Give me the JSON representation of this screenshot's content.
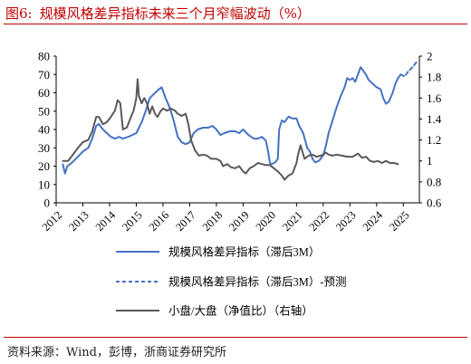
{
  "figure_label": "图6:",
  "title": "规模风格差异指标未来三个月窄幅波动（%）",
  "source": "资料来源：Wind，彭博，浙商证券研究所",
  "colors": {
    "accent": "#c00000",
    "blue": "#4472c4",
    "gray": "#595959"
  },
  "chart_data": {
    "type": "line",
    "x_ticks": [
      "2012",
      "2013",
      "2014",
      "2015",
      "2016",
      "2017",
      "2018",
      "2019",
      "2020",
      "2021",
      "2022",
      "2023",
      "2024",
      "2025"
    ],
    "xlim": [
      2012,
      2025.6
    ],
    "y_left": {
      "lim": [
        0,
        80
      ],
      "ticks": [
        "0",
        "10",
        "20",
        "30",
        "40",
        "50",
        "60",
        "70",
        "80"
      ]
    },
    "y_right": {
      "lim": [
        0.6,
        2.0
      ],
      "ticks": [
        "0.6",
        "0.8",
        "1",
        "1.2",
        "1.4",
        "1.6",
        "1.8",
        "2"
      ]
    },
    "legend": [
      "规模风格差异指标（滞后3M）",
      "规模风格差异指标（滞后3M）-预测",
      "小盘/大盘（净值比）（右轴）"
    ],
    "series": [
      {
        "name": "规模风格差异指标（滞后3M）",
        "axis": "left",
        "style": "solid",
        "points": [
          [
            2012.25,
            21
          ],
          [
            2012.33,
            16
          ],
          [
            2012.42,
            20
          ],
          [
            2012.6,
            22
          ],
          [
            2012.8,
            25
          ],
          [
            2013.0,
            28
          ],
          [
            2013.2,
            30
          ],
          [
            2013.35,
            35
          ],
          [
            2013.5,
            42
          ],
          [
            2013.6,
            43
          ],
          [
            2013.75,
            40
          ],
          [
            2013.9,
            38
          ],
          [
            2014.05,
            36
          ],
          [
            2014.2,
            35
          ],
          [
            2014.35,
            36
          ],
          [
            2014.5,
            35
          ],
          [
            2014.7,
            36
          ],
          [
            2014.85,
            37
          ],
          [
            2015.0,
            38
          ],
          [
            2015.2,
            44
          ],
          [
            2015.35,
            50
          ],
          [
            2015.5,
            57
          ],
          [
            2015.7,
            60
          ],
          [
            2015.85,
            62
          ],
          [
            2015.95,
            63
          ],
          [
            2016.1,
            57
          ],
          [
            2016.25,
            52
          ],
          [
            2016.4,
            45
          ],
          [
            2016.55,
            36
          ],
          [
            2016.7,
            33
          ],
          [
            2016.85,
            32
          ],
          [
            2017.0,
            33
          ],
          [
            2017.15,
            38
          ],
          [
            2017.3,
            40
          ],
          [
            2017.5,
            41
          ],
          [
            2017.7,
            41
          ],
          [
            2017.85,
            42
          ],
          [
            2018.0,
            40
          ],
          [
            2018.15,
            37
          ],
          [
            2018.3,
            38
          ],
          [
            2018.5,
            39
          ],
          [
            2018.7,
            39
          ],
          [
            2018.85,
            38
          ],
          [
            2019.0,
            40
          ],
          [
            2019.2,
            37
          ],
          [
            2019.4,
            35
          ],
          [
            2019.55,
            35
          ],
          [
            2019.7,
            36
          ],
          [
            2019.85,
            34
          ],
          [
            2019.95,
            27
          ],
          [
            2020.0,
            22
          ],
          [
            2020.05,
            21
          ],
          [
            2020.2,
            22
          ],
          [
            2020.3,
            24
          ],
          [
            2020.35,
            40
          ],
          [
            2020.45,
            45
          ],
          [
            2020.55,
            44
          ],
          [
            2020.7,
            47
          ],
          [
            2020.85,
            46
          ],
          [
            2021.0,
            46
          ],
          [
            2021.1,
            42
          ],
          [
            2021.25,
            38
          ],
          [
            2021.4,
            30
          ],
          [
            2021.5,
            28
          ],
          [
            2021.6,
            24
          ],
          [
            2021.7,
            22
          ],
          [
            2021.85,
            23
          ],
          [
            2022.0,
            26
          ],
          [
            2022.1,
            31
          ],
          [
            2022.2,
            38
          ],
          [
            2022.35,
            45
          ],
          [
            2022.5,
            52
          ],
          [
            2022.65,
            58
          ],
          [
            2022.8,
            63
          ],
          [
            2022.9,
            68
          ],
          [
            2023.0,
            67
          ],
          [
            2023.1,
            68
          ],
          [
            2023.2,
            66
          ],
          [
            2023.3,
            70
          ],
          [
            2023.4,
            74
          ],
          [
            2023.5,
            72
          ],
          [
            2023.6,
            70
          ],
          [
            2023.7,
            67
          ],
          [
            2023.85,
            65
          ],
          [
            2024.0,
            63
          ],
          [
            2024.15,
            62
          ],
          [
            2024.25,
            57
          ],
          [
            2024.35,
            54
          ],
          [
            2024.45,
            55
          ],
          [
            2024.6,
            60
          ],
          [
            2024.7,
            65
          ],
          [
            2024.8,
            68
          ],
          [
            2024.9,
            70
          ]
        ]
      },
      {
        "name": "规模风格差异指标（滞后3M）-预测",
        "axis": "left",
        "style": "dashed",
        "points": [
          [
            2024.9,
            70
          ],
          [
            2025.05,
            69
          ],
          [
            2025.2,
            72
          ],
          [
            2025.35,
            74
          ],
          [
            2025.5,
            77
          ]
        ]
      },
      {
        "name": "小盘/大盘（净值比）（右轴）",
        "axis": "right",
        "style": "solid",
        "points": [
          [
            2012.25,
            1.0
          ],
          [
            2012.45,
            1.0
          ],
          [
            2012.6,
            1.05
          ],
          [
            2012.8,
            1.12
          ],
          [
            2013.0,
            1.18
          ],
          [
            2013.2,
            1.2
          ],
          [
            2013.35,
            1.28
          ],
          [
            2013.5,
            1.42
          ],
          [
            2013.6,
            1.42
          ],
          [
            2013.75,
            1.35
          ],
          [
            2013.9,
            1.37
          ],
          [
            2014.05,
            1.42
          ],
          [
            2014.2,
            1.48
          ],
          [
            2014.3,
            1.58
          ],
          [
            2014.4,
            1.55
          ],
          [
            2014.5,
            1.3
          ],
          [
            2014.65,
            1.32
          ],
          [
            2014.8,
            1.42
          ],
          [
            2014.9,
            1.48
          ],
          [
            2015.0,
            1.6
          ],
          [
            2015.05,
            1.78
          ],
          [
            2015.1,
            1.62
          ],
          [
            2015.2,
            1.55
          ],
          [
            2015.3,
            1.6
          ],
          [
            2015.4,
            1.55
          ],
          [
            2015.5,
            1.45
          ],
          [
            2015.6,
            1.52
          ],
          [
            2015.7,
            1.45
          ],
          [
            2015.8,
            1.42
          ],
          [
            2015.9,
            1.47
          ],
          [
            2016.0,
            1.5
          ],
          [
            2016.15,
            1.48
          ],
          [
            2016.3,
            1.5
          ],
          [
            2016.45,
            1.48
          ],
          [
            2016.55,
            1.45
          ],
          [
            2016.7,
            1.43
          ],
          [
            2016.85,
            1.45
          ],
          [
            2016.95,
            1.35
          ],
          [
            2017.05,
            1.2
          ],
          [
            2017.2,
            1.1
          ],
          [
            2017.35,
            1.05
          ],
          [
            2017.5,
            1.06
          ],
          [
            2017.65,
            1.05
          ],
          [
            2017.8,
            1.02
          ],
          [
            2018.0,
            1.02
          ],
          [
            2018.15,
            1.0
          ],
          [
            2018.25,
            0.95
          ],
          [
            2018.4,
            0.97
          ],
          [
            2018.55,
            0.94
          ],
          [
            2018.7,
            0.93
          ],
          [
            2018.85,
            0.95
          ],
          [
            2019.0,
            0.9
          ],
          [
            2019.1,
            0.88
          ],
          [
            2019.25,
            0.93
          ],
          [
            2019.4,
            0.95
          ],
          [
            2019.55,
            0.98
          ],
          [
            2019.7,
            0.97
          ],
          [
            2019.85,
            0.96
          ],
          [
            2020.0,
            0.96
          ],
          [
            2020.15,
            0.93
          ],
          [
            2020.3,
            0.9
          ],
          [
            2020.45,
            0.86
          ],
          [
            2020.55,
            0.82
          ],
          [
            2020.7,
            0.86
          ],
          [
            2020.85,
            0.88
          ],
          [
            2021.0,
            0.98
          ],
          [
            2021.05,
            1.05
          ],
          [
            2021.15,
            1.15
          ],
          [
            2021.3,
            1.02
          ],
          [
            2021.45,
            1.05
          ],
          [
            2021.6,
            1.06
          ],
          [
            2021.75,
            1.04
          ],
          [
            2021.9,
            1.05
          ],
          [
            2022.0,
            1.06
          ],
          [
            2022.1,
            1.08
          ],
          [
            2022.2,
            1.06
          ],
          [
            2022.35,
            1.05
          ],
          [
            2022.5,
            1.06
          ],
          [
            2022.7,
            1.05
          ],
          [
            2022.9,
            1.04
          ],
          [
            2023.1,
            1.04
          ],
          [
            2023.3,
            1.07
          ],
          [
            2023.45,
            1.03
          ],
          [
            2023.6,
            1.04
          ],
          [
            2023.75,
            1.0
          ],
          [
            2023.9,
            0.99
          ],
          [
            2024.05,
            1.0
          ],
          [
            2024.2,
            0.98
          ],
          [
            2024.35,
            1.0
          ],
          [
            2024.5,
            0.98
          ],
          [
            2024.65,
            0.98
          ],
          [
            2024.8,
            0.97
          ]
        ]
      }
    ]
  }
}
